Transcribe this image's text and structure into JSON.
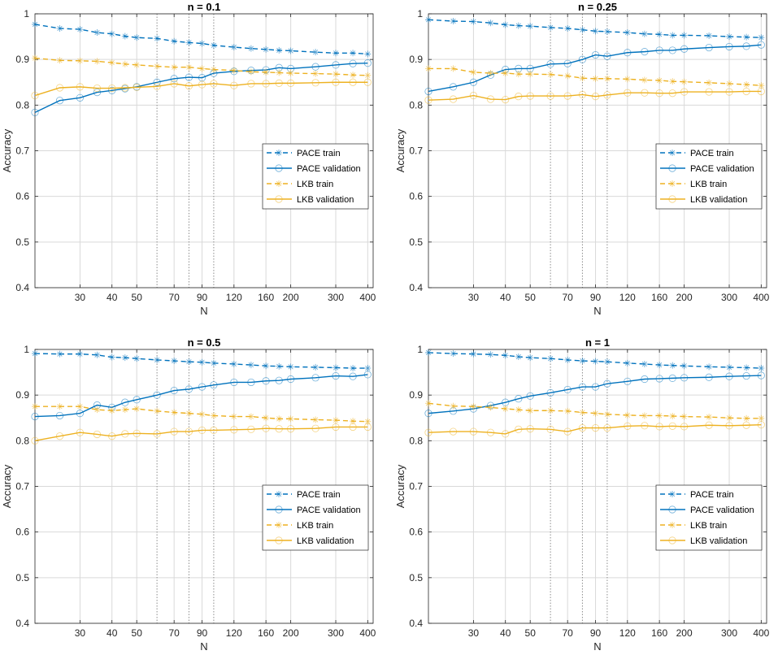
{
  "colors": {
    "pace": "#0072BD",
    "lkb": "#EDB120",
    "grid": "#d9d9d9",
    "axis": "#262626"
  },
  "chart_data": [
    {
      "type": "line",
      "title": "n = 0.1",
      "xlabel": "N",
      "ylabel": "Accuracy",
      "xscale": "log",
      "xlim": [
        20,
        420
      ],
      "ylim": [
        0.4,
        1
      ],
      "xticks": [
        30,
        40,
        50,
        70,
        90,
        120,
        160,
        200,
        300,
        400
      ],
      "xtick_labels": [
        "30",
        "40",
        "50",
        "70",
        "90",
        "120",
        "160",
        "200",
        "300",
        "400"
      ],
      "yticks": [
        0.4,
        0.5,
        0.6,
        0.7,
        0.8,
        0.9,
        1
      ],
      "ytick_labels": [
        "0.4",
        "0.5",
        "0.6",
        "0.7",
        "0.8",
        "0.9",
        "1"
      ],
      "dotted_x": [
        60,
        80,
        100
      ],
      "legend_position": "center-right",
      "x": [
        20,
        25,
        30,
        35,
        40,
        45,
        50,
        60,
        70,
        80,
        90,
        100,
        120,
        140,
        160,
        180,
        200,
        250,
        300,
        350,
        400
      ],
      "series": [
        {
          "name": "PACE train",
          "style": "dashed",
          "marker": "star",
          "color": "#0072BD",
          "values": [
            0.977,
            0.968,
            0.966,
            0.959,
            0.956,
            0.951,
            0.948,
            0.946,
            0.94,
            0.937,
            0.935,
            0.931,
            0.927,
            0.924,
            0.922,
            0.92,
            0.919,
            0.916,
            0.914,
            0.914,
            0.912
          ]
        },
        {
          "name": "PACE validation",
          "style": "solid",
          "marker": "circle",
          "color": "#0072BD",
          "values": [
            0.784,
            0.81,
            0.816,
            0.828,
            0.832,
            0.836,
            0.84,
            0.85,
            0.858,
            0.861,
            0.86,
            0.87,
            0.874,
            0.876,
            0.877,
            0.882,
            0.88,
            0.884,
            0.888,
            0.891,
            0.892
          ]
        },
        {
          "name": "LKB train",
          "style": "dashed",
          "marker": "star",
          "color": "#EDB120",
          "values": [
            0.903,
            0.898,
            0.897,
            0.896,
            0.893,
            0.89,
            0.888,
            0.885,
            0.883,
            0.883,
            0.88,
            0.878,
            0.876,
            0.873,
            0.872,
            0.871,
            0.87,
            0.869,
            0.868,
            0.866,
            0.865
          ]
        },
        {
          "name": "LKB validation",
          "style": "solid",
          "marker": "circle",
          "color": "#EDB120",
          "values": [
            0.821,
            0.838,
            0.84,
            0.837,
            0.837,
            0.838,
            0.839,
            0.841,
            0.847,
            0.842,
            0.845,
            0.847,
            0.843,
            0.847,
            0.847,
            0.848,
            0.848,
            0.849,
            0.85,
            0.85,
            0.85
          ]
        }
      ]
    },
    {
      "type": "line",
      "title": "n = 0.25",
      "xlabel": "N",
      "ylabel": "Accuracy",
      "xscale": "log",
      "xlim": [
        20,
        420
      ],
      "ylim": [
        0.4,
        1
      ],
      "xticks": [
        30,
        40,
        50,
        70,
        90,
        120,
        160,
        200,
        300,
        400
      ],
      "xtick_labels": [
        "30",
        "40",
        "50",
        "70",
        "90",
        "120",
        "160",
        "200",
        "300",
        "400"
      ],
      "yticks": [
        0.4,
        0.5,
        0.6,
        0.7,
        0.8,
        0.9,
        1
      ],
      "ytick_labels": [
        "0.4",
        "0.5",
        "0.6",
        "0.7",
        "0.8",
        "0.9",
        "1"
      ],
      "dotted_x": [
        60,
        80,
        100
      ],
      "legend_position": "center-right",
      "x": [
        20,
        25,
        30,
        35,
        40,
        45,
        50,
        60,
        70,
        80,
        90,
        100,
        120,
        140,
        160,
        180,
        200,
        250,
        300,
        350,
        400
      ],
      "series": [
        {
          "name": "PACE train",
          "style": "dashed",
          "marker": "star",
          "color": "#0072BD",
          "values": [
            0.987,
            0.984,
            0.983,
            0.98,
            0.976,
            0.974,
            0.973,
            0.97,
            0.968,
            0.965,
            0.962,
            0.961,
            0.959,
            0.956,
            0.955,
            0.953,
            0.953,
            0.952,
            0.95,
            0.949,
            0.948
          ]
        },
        {
          "name": "PACE validation",
          "style": "solid",
          "marker": "circle",
          "color": "#0072BD",
          "values": [
            0.83,
            0.84,
            0.85,
            0.866,
            0.878,
            0.88,
            0.88,
            0.89,
            0.891,
            0.9,
            0.91,
            0.907,
            0.915,
            0.917,
            0.92,
            0.92,
            0.923,
            0.926,
            0.928,
            0.929,
            0.932
          ]
        },
        {
          "name": "LKB train",
          "style": "dashed",
          "marker": "star",
          "color": "#EDB120",
          "values": [
            0.88,
            0.88,
            0.872,
            0.87,
            0.87,
            0.868,
            0.868,
            0.867,
            0.864,
            0.859,
            0.858,
            0.858,
            0.857,
            0.855,
            0.854,
            0.852,
            0.851,
            0.849,
            0.847,
            0.845,
            0.843
          ]
        },
        {
          "name": "LKB validation",
          "style": "solid",
          "marker": "circle",
          "color": "#EDB120",
          "values": [
            0.811,
            0.813,
            0.821,
            0.813,
            0.812,
            0.819,
            0.82,
            0.82,
            0.82,
            0.823,
            0.819,
            0.822,
            0.827,
            0.827,
            0.826,
            0.826,
            0.829,
            0.829,
            0.829,
            0.83,
            0.83
          ]
        }
      ]
    },
    {
      "type": "line",
      "title": "n = 0.5",
      "xlabel": "N",
      "ylabel": "Accuracy",
      "xscale": "log",
      "xlim": [
        20,
        420
      ],
      "ylim": [
        0.4,
        1
      ],
      "xticks": [
        30,
        40,
        50,
        70,
        90,
        120,
        160,
        200,
        300,
        400
      ],
      "xtick_labels": [
        "30",
        "40",
        "50",
        "70",
        "90",
        "120",
        "160",
        "200",
        "300",
        "400"
      ],
      "yticks": [
        0.4,
        0.5,
        0.6,
        0.7,
        0.8,
        0.9,
        1
      ],
      "ytick_labels": [
        "0.4",
        "0.5",
        "0.6",
        "0.7",
        "0.8",
        "0.9",
        "1"
      ],
      "dotted_x": [
        60,
        80,
        100
      ],
      "legend_position": "bottom-right",
      "x": [
        20,
        25,
        30,
        35,
        40,
        45,
        50,
        60,
        70,
        80,
        90,
        100,
        120,
        140,
        160,
        180,
        200,
        250,
        300,
        350,
        400
      ],
      "series": [
        {
          "name": "PACE train",
          "style": "dashed",
          "marker": "star",
          "color": "#0072BD",
          "values": [
            0.991,
            0.99,
            0.99,
            0.988,
            0.983,
            0.982,
            0.98,
            0.977,
            0.975,
            0.973,
            0.972,
            0.97,
            0.968,
            0.966,
            0.964,
            0.963,
            0.962,
            0.961,
            0.96,
            0.959,
            0.959
          ]
        },
        {
          "name": "PACE validation",
          "style": "solid",
          "marker": "circle",
          "color": "#0072BD",
          "values": [
            0.853,
            0.855,
            0.86,
            0.878,
            0.873,
            0.884,
            0.89,
            0.9,
            0.91,
            0.913,
            0.918,
            0.922,
            0.928,
            0.928,
            0.931,
            0.932,
            0.935,
            0.938,
            0.942,
            0.941,
            0.945
          ]
        },
        {
          "name": "LKB train",
          "style": "dashed",
          "marker": "star",
          "color": "#EDB120",
          "values": [
            0.875,
            0.875,
            0.875,
            0.868,
            0.866,
            0.868,
            0.87,
            0.865,
            0.862,
            0.86,
            0.858,
            0.855,
            0.853,
            0.853,
            0.85,
            0.848,
            0.848,
            0.846,
            0.845,
            0.843,
            0.842
          ]
        },
        {
          "name": "LKB validation",
          "style": "solid",
          "marker": "circle",
          "color": "#EDB120",
          "values": [
            0.8,
            0.81,
            0.818,
            0.814,
            0.81,
            0.815,
            0.816,
            0.815,
            0.82,
            0.82,
            0.823,
            0.823,
            0.824,
            0.825,
            0.827,
            0.826,
            0.826,
            0.827,
            0.83,
            0.83,
            0.83
          ]
        }
      ]
    },
    {
      "type": "line",
      "title": "n = 1",
      "xlabel": "N",
      "ylabel": "Accuracy",
      "xscale": "log",
      "xlim": [
        20,
        420
      ],
      "ylim": [
        0.4,
        1
      ],
      "xticks": [
        30,
        40,
        50,
        70,
        90,
        120,
        160,
        200,
        300,
        400
      ],
      "xtick_labels": [
        "30",
        "40",
        "50",
        "70",
        "90",
        "120",
        "160",
        "200",
        "300",
        "400"
      ],
      "yticks": [
        0.4,
        0.5,
        0.6,
        0.7,
        0.8,
        0.9,
        1
      ],
      "ytick_labels": [
        "0.4",
        "0.5",
        "0.6",
        "0.7",
        "0.8",
        "0.9",
        "1"
      ],
      "dotted_x": [
        60,
        80,
        100
      ],
      "legend_position": "bottom-right",
      "x": [
        20,
        25,
        30,
        35,
        40,
        45,
        50,
        60,
        70,
        80,
        90,
        100,
        120,
        140,
        160,
        180,
        200,
        250,
        300,
        350,
        400
      ],
      "series": [
        {
          "name": "PACE train",
          "style": "dashed",
          "marker": "star",
          "color": "#0072BD",
          "values": [
            0.993,
            0.991,
            0.99,
            0.989,
            0.987,
            0.984,
            0.982,
            0.98,
            0.977,
            0.975,
            0.974,
            0.973,
            0.97,
            0.968,
            0.966,
            0.965,
            0.964,
            0.962,
            0.961,
            0.96,
            0.959
          ]
        },
        {
          "name": "PACE validation",
          "style": "solid",
          "marker": "circle",
          "color": "#0072BD",
          "values": [
            0.86,
            0.865,
            0.87,
            0.877,
            0.884,
            0.892,
            0.898,
            0.905,
            0.912,
            0.918,
            0.918,
            0.925,
            0.93,
            0.935,
            0.936,
            0.937,
            0.938,
            0.939,
            0.941,
            0.942,
            0.943
          ]
        },
        {
          "name": "LKB train",
          "style": "dashed",
          "marker": "star",
          "color": "#EDB120",
          "values": [
            0.882,
            0.876,
            0.875,
            0.873,
            0.87,
            0.868,
            0.866,
            0.866,
            0.865,
            0.862,
            0.86,
            0.858,
            0.856,
            0.855,
            0.855,
            0.854,
            0.853,
            0.852,
            0.85,
            0.849,
            0.849
          ]
        },
        {
          "name": "LKB validation",
          "style": "solid",
          "marker": "circle",
          "color": "#EDB120",
          "values": [
            0.818,
            0.82,
            0.82,
            0.818,
            0.815,
            0.825,
            0.826,
            0.825,
            0.82,
            0.828,
            0.828,
            0.828,
            0.832,
            0.833,
            0.831,
            0.832,
            0.831,
            0.834,
            0.833,
            0.834,
            0.835
          ]
        }
      ]
    }
  ]
}
